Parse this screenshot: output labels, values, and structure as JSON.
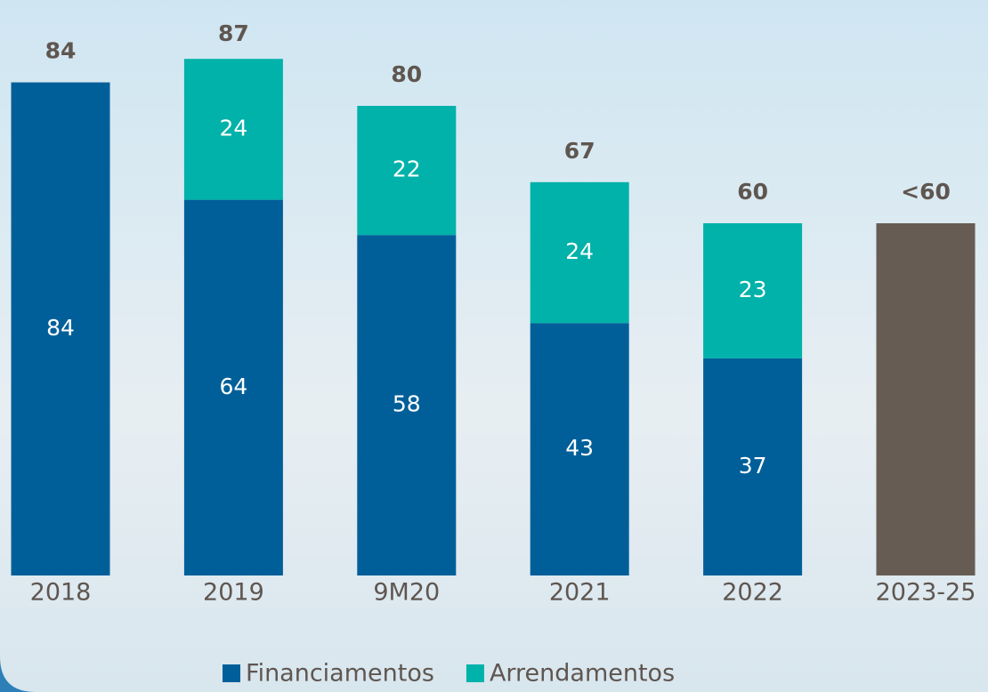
{
  "chart_data": {
    "type": "stacked_bar",
    "categories": [
      "2018",
      "2019",
      "9M20",
      "2021",
      "2022",
      "2023-25"
    ],
    "series": [
      {
        "name": "Financiamentos",
        "color": "#005f99",
        "values": [
          84,
          64,
          58,
          43,
          37,
          null
        ]
      },
      {
        "name": "Arrendamentos",
        "color": "#00b2a9",
        "values": [
          null,
          24,
          22,
          24,
          23,
          null
        ]
      }
    ],
    "projection": {
      "color": "#675c53",
      "values": [
        null,
        null,
        null,
        null,
        null,
        60
      ]
    },
    "totals": {
      "values": [
        84,
        87,
        80,
        67,
        60,
        60
      ],
      "value_labels": [
        "84",
        "87",
        "80",
        "67",
        "60",
        "<60"
      ]
    }
  }
}
